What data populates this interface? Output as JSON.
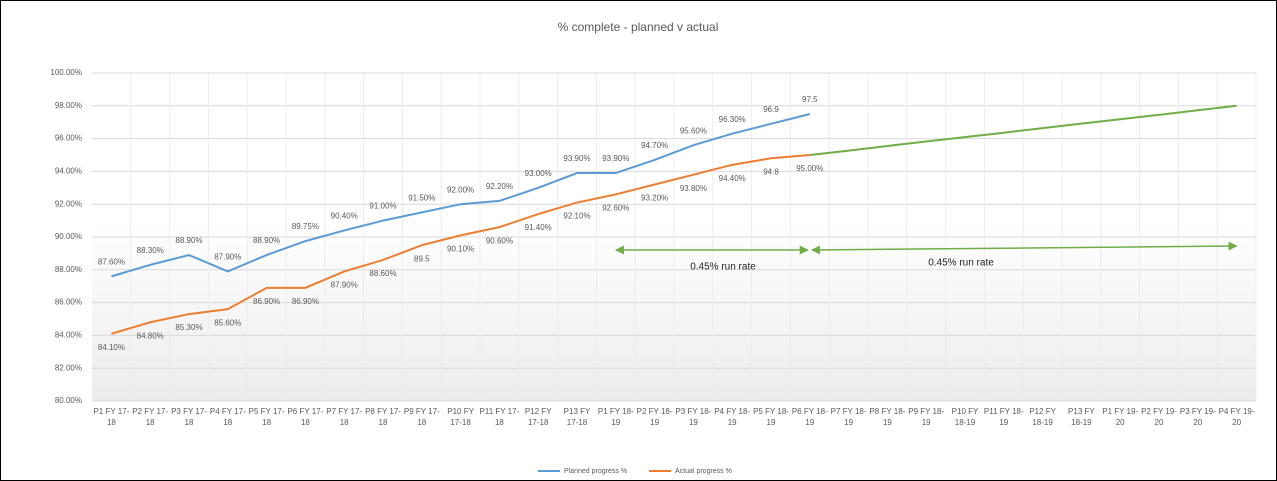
{
  "chart_data": {
    "type": "line",
    "title": "% complete - planned v actual",
    "categories": [
      "P1 FY 17-18",
      "P2 FY 17-18",
      "P3 FY 17-18",
      "P4 FY 17-18",
      "P5 FY 17-18",
      "P6 FY 17-18",
      "P7 FY 17-18",
      "P8 FY 17-18",
      "P9 FY 17-18",
      "P10 FY 17-18",
      "P11 FY 17-18",
      "P12 FY 17-18",
      "P13 FY 17-18",
      "P1 FY 18-19",
      "P2 FY 18-19",
      "P3 FY 18-19",
      "P4 FY 18-19",
      "P5 FY 18-19",
      "P6 FY 18-19",
      "P7 FY 18-19",
      "P8 FY 18-19",
      "P9 FY 18-19",
      "P10 FY 18-19",
      "P11 FY 18-19",
      "P12 FY 18-19",
      "P13 FY 18-19",
      "P1 FY 19-20",
      "P2 FY 19-20",
      "P3 FY 19-20",
      "P4 FY 19-20"
    ],
    "series": [
      {
        "name": "Planned progress %",
        "color": "#5b9bd5",
        "values": [
          87.6,
          88.3,
          88.9,
          87.9,
          88.9,
          89.75,
          90.4,
          91.0,
          91.5,
          92.0,
          92.2,
          93.0,
          93.9,
          93.9,
          94.7,
          95.6,
          96.3,
          96.9,
          97.5,
          null,
          null,
          null,
          null,
          null,
          null,
          null,
          null,
          null,
          null,
          null
        ],
        "value_labels": [
          "87.60%",
          "88.30%",
          "88.90%",
          "87.90%",
          "88.90%",
          "89.75%",
          "90.40%",
          "91.00%",
          "91.50%",
          "92.00%",
          "92.20%",
          "93.00%",
          "93.90%",
          "93.90%",
          "94.70%",
          "95.60%",
          "96.30%",
          "96.9",
          "97.5",
          null,
          null,
          null,
          null,
          null,
          null,
          null,
          null,
          null,
          null,
          null
        ]
      },
      {
        "name": "Actual progress %",
        "color": "#ed7d31",
        "values": [
          84.1,
          84.8,
          85.3,
          85.6,
          86.9,
          86.9,
          87.9,
          88.6,
          89.5,
          90.1,
          90.6,
          91.4,
          92.1,
          92.6,
          93.2,
          93.8,
          94.4,
          94.8,
          95.0,
          null,
          null,
          null,
          null,
          null,
          null,
          null,
          null,
          null,
          null,
          null
        ],
        "value_labels": [
          "84.10%",
          "84.80%",
          "85.30%",
          "85.60%",
          "86.90%",
          "86.90%",
          "87.90%",
          "88.60%",
          "89.5",
          "90.10%",
          "90.60%",
          "91.40%",
          "92.10%",
          "92.60%",
          "93.20%",
          "93.80%",
          "94.40%",
          "94.8",
          "95.00%",
          null,
          null,
          null,
          null,
          null,
          null,
          null,
          null,
          null,
          null,
          null
        ]
      },
      {
        "color": "#70ad47",
        "values": [
          null,
          null,
          null,
          null,
          null,
          null,
          null,
          null,
          null,
          null,
          null,
          null,
          null,
          null,
          null,
          null,
          null,
          null,
          95.0,
          95.27,
          95.55,
          95.82,
          96.09,
          96.36,
          96.64,
          96.91,
          97.18,
          97.45,
          97.73,
          98.0
        ]
      }
    ],
    "ylim": [
      80,
      100
    ],
    "yticks": [
      {
        "value": 80,
        "label": "80.00%"
      },
      {
        "value": 82,
        "label": "82.00%"
      },
      {
        "value": 84,
        "label": "84.00%"
      },
      {
        "value": 86,
        "label": "86.00%"
      },
      {
        "value": 88,
        "label": "88.00%"
      },
      {
        "value": 90,
        "label": "90.00%"
      },
      {
        "value": 92,
        "label": "92.00%"
      },
      {
        "value": 94,
        "label": "94.00%"
      },
      {
        "value": 96,
        "label": "96.00%"
      },
      {
        "value": 98,
        "label": "98.00%"
      },
      {
        "value": 100,
        "label": "100.00%"
      }
    ],
    "grid": true,
    "legend": "bottom",
    "annotations": [
      "0.45% run rate",
      "0.45% run rate"
    ]
  }
}
